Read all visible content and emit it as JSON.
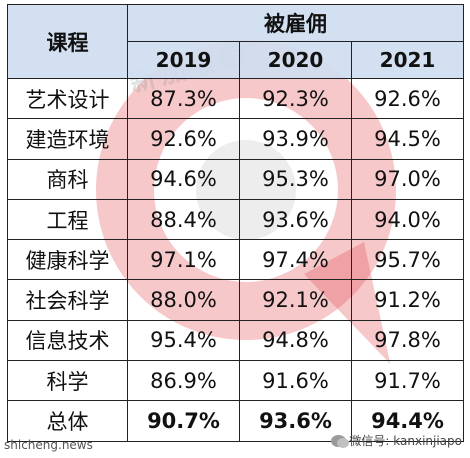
{
  "watermark": {
    "text": "新加坡眼",
    "color": "#e04850"
  },
  "table": {
    "header_color": "#cedde f0",
    "course_header": "课程",
    "group_header": "被雇佣",
    "years": [
      "2019",
      "2020",
      "2021"
    ],
    "rows": [
      {
        "course": "艺术设计",
        "values": [
          "87.3%",
          "92.3%",
          "92.6%"
        ]
      },
      {
        "course": "建造环境",
        "values": [
          "92.6%",
          "93.9%",
          "94.5%"
        ]
      },
      {
        "course": "商科",
        "values": [
          "94.6%",
          "95.3%",
          "97.0%"
        ]
      },
      {
        "course": "工程",
        "values": [
          "88.4%",
          "93.6%",
          "94.0%"
        ]
      },
      {
        "course": "健康科学",
        "values": [
          "97.1%",
          "97.4%",
          "95.7%"
        ]
      },
      {
        "course": "社会科学",
        "values": [
          "88.0%",
          "92.1%",
          "91.2%"
        ]
      },
      {
        "course": "信息技术",
        "values": [
          "95.4%",
          "94.8%",
          "97.8%"
        ]
      },
      {
        "course": "科学",
        "values": [
          "86.9%",
          "91.6%",
          "91.7%"
        ]
      },
      {
        "course": "总体",
        "values": [
          "90.7%",
          "93.6%",
          "94.4%"
        ]
      }
    ]
  },
  "footer": {
    "left": "shicheng.news",
    "right": "微信号: kanxinjiapo",
    "icon": "wechat-icon"
  }
}
